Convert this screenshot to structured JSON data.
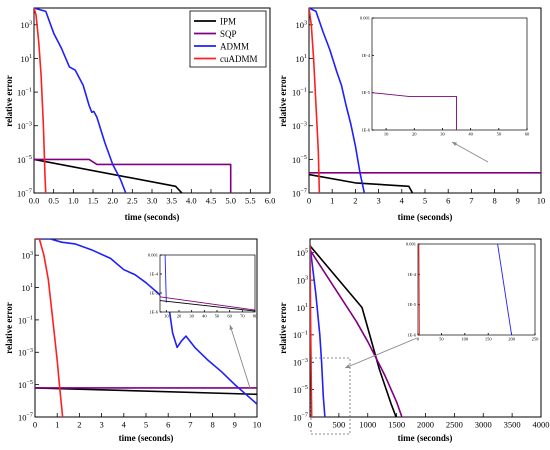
{
  "colors": {
    "IPM": "#000000",
    "SQP": "#800080",
    "ADMM": "#1f1fff",
    "cuADMM": "#ff1f1f",
    "pointer": "#888888"
  },
  "legend": {
    "placement": "top-right of panel 1",
    "entries": [
      "IPM",
      "SQP",
      "ADMM",
      "cuADMM"
    ]
  },
  "chart_data": [
    {
      "type": "line",
      "panel": "top-left",
      "xlabel": "time (seconds)",
      "ylabel": "relative error",
      "xlim": [
        0,
        6
      ],
      "ylim_exp": [
        -7,
        4
      ],
      "y_scale": "log",
      "xticks": [
        {
          "v": 0,
          "t": "0.0"
        },
        {
          "v": 0.5,
          "t": "0.5"
        },
        {
          "v": 1,
          "t": "1.0"
        },
        {
          "v": 1.5,
          "t": "1.5"
        },
        {
          "v": 2,
          "t": "2.0"
        },
        {
          "v": 2.5,
          "t": "2.5"
        },
        {
          "v": 3,
          "t": "3.0"
        },
        {
          "v": 3.5,
          "t": "3.5"
        },
        {
          "v": 4,
          "t": "4.0"
        },
        {
          "v": 4.5,
          "t": "4.5"
        },
        {
          "v": 5,
          "t": "5.0"
        },
        {
          "v": 5.5,
          "t": "5.5"
        },
        {
          "v": 6,
          "t": "6.0"
        }
      ],
      "yticks": [
        {
          "e": 3
        },
        {
          "e": 1
        },
        {
          "e": -1
        },
        {
          "e": -3
        },
        {
          "e": -5
        },
        {
          "e": -7
        }
      ],
      "series": [
        {
          "name": "IPM",
          "points": [
            [
              0,
              -5
            ],
            [
              3.6,
              -6.6
            ],
            [
              3.8,
              -7.1
            ]
          ]
        },
        {
          "name": "SQP",
          "points": [
            [
              0,
              -5
            ],
            [
              1.4,
              -5
            ],
            [
              1.6,
              -5.3
            ],
            [
              3.5,
              -5.3
            ],
            [
              5.0,
              -5.3
            ],
            [
              5.0,
              -7.1
            ]
          ]
        },
        {
          "name": "ADMM",
          "points": [
            [
              0,
              4
            ],
            [
              0.3,
              3.8
            ],
            [
              0.5,
              2.5
            ],
            [
              0.7,
              1.6
            ],
            [
              0.9,
              0.5
            ],
            [
              1.05,
              0.3
            ],
            [
              1.25,
              -0.6
            ],
            [
              1.4,
              -1.8
            ],
            [
              1.47,
              -2.2
            ],
            [
              1.52,
              -2.15
            ],
            [
              1.6,
              -2.5
            ],
            [
              1.8,
              -4
            ],
            [
              2.0,
              -5.3
            ],
            [
              2.2,
              -6.2
            ],
            [
              2.35,
              -7.1
            ]
          ]
        },
        {
          "name": "cuADMM",
          "points": [
            [
              0,
              4
            ],
            [
              0.05,
              3.6
            ],
            [
              0.12,
              2
            ],
            [
              0.18,
              0
            ],
            [
              0.24,
              -3
            ],
            [
              0.28,
              -6
            ],
            [
              0.3,
              -7.1
            ]
          ]
        }
      ]
    },
    {
      "type": "line",
      "panel": "top-right",
      "xlabel": "time (seconds)",
      "ylabel": "relative error",
      "xlim": [
        0,
        10
      ],
      "ylim_exp": [
        -7,
        4
      ],
      "y_scale": "log",
      "xticks": [
        {
          "v": 0,
          "t": "0"
        },
        {
          "v": 1,
          "t": "1"
        },
        {
          "v": 2,
          "t": "2"
        },
        {
          "v": 3,
          "t": "3"
        },
        {
          "v": 4,
          "t": "4"
        },
        {
          "v": 5,
          "t": "5"
        },
        {
          "v": 6,
          "t": "6"
        },
        {
          "v": 7,
          "t": "7"
        },
        {
          "v": 8,
          "t": "8"
        },
        {
          "v": 9,
          "t": "9"
        },
        {
          "v": 10,
          "t": "10"
        }
      ],
      "yticks": [
        {
          "e": 3
        },
        {
          "e": 1
        },
        {
          "e": -1
        },
        {
          "e": -3
        },
        {
          "e": -5
        },
        {
          "e": -7
        }
      ],
      "series": [
        {
          "name": "IPM",
          "points": [
            [
              0,
              -5.9
            ],
            [
              2.0,
              -6.4
            ],
            [
              4.3,
              -6.6
            ],
            [
              4.5,
              -7.1
            ]
          ]
        },
        {
          "name": "SQP",
          "points": [
            [
              0,
              -5.8
            ],
            [
              10,
              -5.8
            ]
          ]
        },
        {
          "name": "ADMM",
          "points": [
            [
              0,
              4
            ],
            [
              0.3,
              3.8
            ],
            [
              0.6,
              2.6
            ],
            [
              0.9,
              1.5
            ],
            [
              1.2,
              0.2
            ],
            [
              1.4,
              -0.6
            ],
            [
              1.6,
              -1.8
            ],
            [
              1.8,
              -2.9
            ],
            [
              2.0,
              -4.2
            ],
            [
              2.2,
              -5.8
            ],
            [
              2.4,
              -7.1
            ]
          ]
        },
        {
          "name": "cuADMM",
          "points": [
            [
              0,
              4
            ],
            [
              0.1,
              3
            ],
            [
              0.2,
              1
            ],
            [
              0.3,
              -1.8
            ],
            [
              0.4,
              -4.5
            ],
            [
              0.45,
              -7.1
            ]
          ]
        }
      ],
      "inset": {
        "xlim": [
          5,
          60
        ],
        "ylim_exp": [
          -6,
          -3
        ],
        "xticks": [
          {
            "v": 10,
            "t": "10"
          },
          {
            "v": 20,
            "t": "20"
          },
          {
            "v": 30,
            "t": "30"
          },
          {
            "v": 40,
            "t": "40"
          },
          {
            "v": 50,
            "t": "50"
          },
          {
            "v": 60,
            "t": "60"
          }
        ],
        "yticks": [
          {
            "e": -3,
            "t": "0.001"
          },
          {
            "e": -4,
            "t": "1E-4"
          },
          {
            "e": -5,
            "t": "1E-5"
          },
          {
            "e": -6,
            "t": "1E-6"
          }
        ],
        "series": [
          {
            "name": "SQP",
            "points": [
              [
                5,
                -5
              ],
              [
                18,
                -5.1
              ],
              [
                35,
                -5.1
              ],
              [
                35,
                -6
              ]
            ]
          }
        ]
      }
    },
    {
      "type": "line",
      "panel": "bottom-left",
      "xlabel": "time (seconds)",
      "ylabel": "relative error",
      "xlim": [
        0,
        10
      ],
      "ylim_exp": [
        -7,
        4
      ],
      "y_scale": "log",
      "xticks": [
        {
          "v": 0,
          "t": "0"
        },
        {
          "v": 1,
          "t": "1"
        },
        {
          "v": 2,
          "t": "2"
        },
        {
          "v": 3,
          "t": "3"
        },
        {
          "v": 4,
          "t": "4"
        },
        {
          "v": 5,
          "t": "5"
        },
        {
          "v": 6,
          "t": "6"
        },
        {
          "v": 7,
          "t": "7"
        },
        {
          "v": 8,
          "t": "8"
        },
        {
          "v": 9,
          "t": "9"
        },
        {
          "v": 10,
          "t": "10"
        }
      ],
      "yticks": [
        {
          "e": 3
        },
        {
          "e": 1
        },
        {
          "e": -1
        },
        {
          "e": -3
        },
        {
          "e": -5
        },
        {
          "e": -7
        }
      ],
      "series": [
        {
          "name": "IPM",
          "points": [
            [
              0,
              -5.2
            ],
            [
              10,
              -5.6
            ]
          ]
        },
        {
          "name": "SQP",
          "points": [
            [
              0,
              -5.2
            ],
            [
              10,
              -5.2
            ]
          ]
        },
        {
          "name": "ADMM",
          "points": [
            [
              0,
              4
            ],
            [
              0.7,
              4
            ],
            [
              1.2,
              3.8
            ],
            [
              1.8,
              3.7
            ],
            [
              2.6,
              3.3
            ],
            [
              3.4,
              2.8
            ],
            [
              4.0,
              2.1
            ],
            [
              4.5,
              1.8
            ],
            [
              5.0,
              1.3
            ],
            [
              5.5,
              0.7
            ],
            [
              6.0,
              0.1
            ],
            [
              6.2,
              -1.8
            ],
            [
              6.4,
              -2.7
            ],
            [
              6.6,
              -2.3
            ],
            [
              6.8,
              -2.0
            ],
            [
              7.2,
              -2.7
            ],
            [
              7.8,
              -3.5
            ],
            [
              8.4,
              -4.2
            ],
            [
              9.0,
              -5.0
            ],
            [
              9.5,
              -5.6
            ],
            [
              10,
              -6.2
            ]
          ]
        },
        {
          "name": "cuADMM",
          "points": [
            [
              0,
              4
            ],
            [
              0.2,
              4
            ],
            [
              0.4,
              3
            ],
            [
              0.6,
              1.5
            ],
            [
              0.8,
              -1
            ],
            [
              1.0,
              -3.5
            ],
            [
              1.1,
              -5
            ],
            [
              1.25,
              -7.1
            ]
          ]
        }
      ],
      "inset": {
        "xlim": [
          5,
          80
        ],
        "ylim_exp": [
          -6,
          -3
        ],
        "xticks": [
          {
            "v": 10,
            "t": "10"
          },
          {
            "v": 20,
            "t": "20"
          },
          {
            "v": 30,
            "t": "30"
          },
          {
            "v": 40,
            "t": "40"
          },
          {
            "v": 50,
            "t": "50"
          },
          {
            "v": 60,
            "t": "60"
          },
          {
            "v": 70,
            "t": "70"
          },
          {
            "v": 80,
            "t": "80"
          }
        ],
        "yticks": [
          {
            "e": -3,
            "t": "0.001"
          },
          {
            "e": -4,
            "t": "1E-4"
          },
          {
            "e": -5,
            "t": "1E-5"
          },
          {
            "e": -6,
            "t": "1E-6"
          }
        ],
        "series": [
          {
            "name": "ADMM",
            "points": [
              [
                9,
                -3
              ],
              [
                10,
                -5.5
              ]
            ]
          },
          {
            "name": "SQP",
            "points": [
              [
                5,
                -5.2
              ],
              [
                80,
                -5.9
              ]
            ]
          },
          {
            "name": "IPM",
            "points": [
              [
                5,
                -5.4
              ],
              [
                80,
                -5.95
              ]
            ]
          }
        ]
      }
    },
    {
      "type": "line",
      "panel": "bottom-right",
      "xlabel": "time (seconds)",
      "ylabel": "relative error",
      "xlim": [
        0,
        4000
      ],
      "ylim_exp": [
        -7,
        6
      ],
      "y_scale": "log",
      "xticks": [
        {
          "v": 0,
          "t": "0"
        },
        {
          "v": 500,
          "t": "500"
        },
        {
          "v": 1000,
          "t": "1000"
        },
        {
          "v": 1500,
          "t": "1500"
        },
        {
          "v": 2000,
          "t": "2000"
        },
        {
          "v": 2500,
          "t": "2500"
        },
        {
          "v": 3000,
          "t": "3000"
        },
        {
          "v": 3500,
          "t": "3500"
        },
        {
          "v": 4000,
          "t": "4000"
        }
      ],
      "yticks": [
        {
          "e": 5
        },
        {
          "e": 3
        },
        {
          "e": 1
        },
        {
          "e": -1
        },
        {
          "e": -3
        },
        {
          "e": -5
        },
        {
          "e": -7
        }
      ],
      "series": [
        {
          "name": "IPM",
          "points": [
            [
              0,
              5.5
            ],
            [
              900,
              1
            ],
            [
              1000,
              -0.5
            ],
            [
              1200,
              -3.5
            ],
            [
              1400,
              -6
            ],
            [
              1500,
              -7.1
            ]
          ]
        },
        {
          "name": "SQP",
          "points": [
            [
              0,
              5.2
            ],
            [
              800,
              0
            ],
            [
              1000,
              -1.5
            ],
            [
              1300,
              -4
            ],
            [
              1500,
              -5.9
            ],
            [
              1600,
              -7.1
            ]
          ]
        },
        {
          "name": "ADMM",
          "points": [
            [
              0,
              5.5
            ],
            [
              100,
              2
            ],
            [
              170,
              -1
            ],
            [
              200,
              -3
            ],
            [
              230,
              -5.5
            ],
            [
              260,
              -7.1
            ]
          ]
        },
        {
          "name": "cuADMM",
          "points": [
            [
              0,
              5.5
            ],
            [
              10,
              0
            ],
            [
              20,
              -4
            ],
            [
              30,
              -7.1
            ]
          ]
        }
      ],
      "inset": {
        "xlim": [
          0,
          250
        ],
        "ylim_exp": [
          -6,
          -3
        ],
        "xticks": [
          {
            "v": 0,
            "t": "0"
          },
          {
            "v": 50,
            "t": "50"
          },
          {
            "v": 100,
            "t": "100"
          },
          {
            "v": 150,
            "t": "150"
          },
          {
            "v": 200,
            "t": "200"
          },
          {
            "v": 250,
            "t": "250"
          }
        ],
        "yticks": [
          {
            "e": -3,
            "t": "0.001"
          },
          {
            "e": -4,
            "t": "1E-4"
          },
          {
            "e": -5,
            "t": "1E-5"
          },
          {
            "e": -6,
            "t": "1E-6"
          }
        ],
        "series": [
          {
            "name": "cuADMM",
            "points": [
              [
                2,
                -3
              ],
              [
                3,
                -6
              ]
            ]
          },
          {
            "name": "ADMM",
            "points": [
              [
                170,
                -3
              ],
              [
                200,
                -6
              ]
            ]
          }
        ]
      }
    }
  ]
}
